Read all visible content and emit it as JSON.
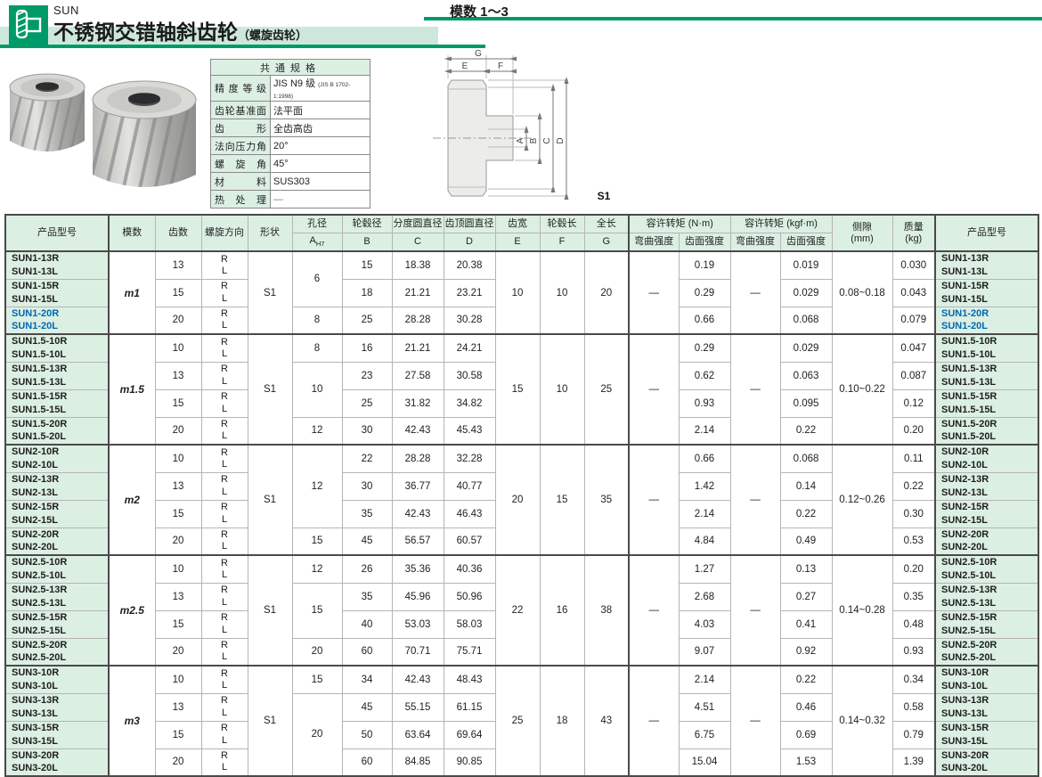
{
  "header": {
    "series": "SUN",
    "title": "不锈钢交错轴斜齿轮",
    "title_suffix": "（螺旋齿轮）",
    "module_range": "模数 1～3"
  },
  "spec": {
    "title": "共通规格",
    "rows": [
      {
        "label": "精度等级",
        "value": "JIS N9 级",
        "note": "(JIS B 1702-1:1998)"
      },
      {
        "label": "齿轮基准面",
        "value": "法平面",
        "note": ""
      },
      {
        "label": "齿形",
        "value": "全齿高齿",
        "note": ""
      },
      {
        "label": "法向压力角",
        "value": "20°",
        "note": ""
      },
      {
        "label": "螺旋角",
        "value": "45°",
        "note": ""
      },
      {
        "label": "材料",
        "value": "SUS303",
        "note": ""
      },
      {
        "label": "热处理",
        "value": "—",
        "note": ""
      }
    ]
  },
  "diagram": {
    "g": "G",
    "e": "E",
    "f": "F",
    "a": "A",
    "b": "B",
    "c": "C",
    "d": "D",
    "shape_label": "S1"
  },
  "table": {
    "headers": {
      "product": "产品型号",
      "module": "模数",
      "teeth": "齿数",
      "helix": "螺旋方向",
      "shape": "形状",
      "bore": "孔径",
      "bore_letter": "A",
      "bore_tol": "H7",
      "hub_dia": "轮毂径",
      "b": "B",
      "pitch_dia": "分度圆直径",
      "c": "C",
      "tip_dia": "齿顶圆直径",
      "d": "D",
      "face_width": "齿宽",
      "e": "E",
      "hub_len": "轮毂长",
      "f": "F",
      "total_len": "全长",
      "g": "G",
      "torque_nm": "容许转矩 (N·m)",
      "torque_kgfm": "容许转矩 (kgf·m)",
      "bend": "弯曲强度",
      "surface": "齿面强度",
      "backlash": "侧隙",
      "backlash_unit": "(mm)",
      "mass": "质量",
      "mass_unit": "(kg)"
    },
    "helix_r": "R",
    "helix_l": "L",
    "blocks": [
      {
        "module": "m1",
        "shape": "S1",
        "E": "10",
        "F": "10",
        "G": "20",
        "bend_nm": "—",
        "bend_kgfm": "—",
        "backlash": "0.08~0.18",
        "bore_spans": [
          [
            "6",
            2
          ],
          [
            "8",
            1
          ]
        ],
        "rows": [
          {
            "r": "SUN1-13R",
            "l": "SUN1-13L",
            "teeth": "13",
            "B": "15",
            "C": "18.38",
            "D": "20.38",
            "surf_nm": "0.19",
            "surf_kgfm": "0.019",
            "mass": "0.030",
            "hl": false
          },
          {
            "r": "SUN1-15R",
            "l": "SUN1-15L",
            "teeth": "15",
            "B": "18",
            "C": "21.21",
            "D": "23.21",
            "surf_nm": "0.29",
            "surf_kgfm": "0.029",
            "mass": "0.043",
            "hl": false
          },
          {
            "r": "SUN1-20R",
            "l": "SUN1-20L",
            "teeth": "20",
            "B": "25",
            "C": "28.28",
            "D": "30.28",
            "surf_nm": "0.66",
            "surf_kgfm": "0.068",
            "mass": "0.079",
            "hl": true
          }
        ]
      },
      {
        "module": "m1.5",
        "shape": "S1",
        "E": "15",
        "F": "10",
        "G": "25",
        "bend_nm": "—",
        "bend_kgfm": "—",
        "backlash": "0.10~0.22",
        "bore_spans": [
          [
            "8",
            1
          ],
          [
            "10",
            2
          ],
          [
            "12",
            1
          ]
        ],
        "rows": [
          {
            "r": "SUN1.5-10R",
            "l": "SUN1.5-10L",
            "teeth": "10",
            "B": "16",
            "C": "21.21",
            "D": "24.21",
            "surf_nm": "0.29",
            "surf_kgfm": "0.029",
            "mass": "0.047",
            "hl": false
          },
          {
            "r": "SUN1.5-13R",
            "l": "SUN1.5-13L",
            "teeth": "13",
            "B": "23",
            "C": "27.58",
            "D": "30.58",
            "surf_nm": "0.62",
            "surf_kgfm": "0.063",
            "mass": "0.087",
            "hl": false
          },
          {
            "r": "SUN1.5-15R",
            "l": "SUN1.5-15L",
            "teeth": "15",
            "B": "25",
            "C": "31.82",
            "D": "34.82",
            "surf_nm": "0.93",
            "surf_kgfm": "0.095",
            "mass": "0.12",
            "hl": false
          },
          {
            "r": "SUN1.5-20R",
            "l": "SUN1.5-20L",
            "teeth": "20",
            "B": "30",
            "C": "42.43",
            "D": "45.43",
            "surf_nm": "2.14",
            "surf_kgfm": "0.22",
            "mass": "0.20",
            "hl": false
          }
        ]
      },
      {
        "module": "m2",
        "shape": "S1",
        "E": "20",
        "F": "15",
        "G": "35",
        "bend_nm": "—",
        "bend_kgfm": "—",
        "backlash": "0.12~0.26",
        "bore_spans": [
          [
            "12",
            3
          ],
          [
            "15",
            1
          ]
        ],
        "rows": [
          {
            "r": "SUN2-10R",
            "l": "SUN2-10L",
            "teeth": "10",
            "B": "22",
            "C": "28.28",
            "D": "32.28",
            "surf_nm": "0.66",
            "surf_kgfm": "0.068",
            "mass": "0.11",
            "hl": false
          },
          {
            "r": "SUN2-13R",
            "l": "SUN2-13L",
            "teeth": "13",
            "B": "30",
            "C": "36.77",
            "D": "40.77",
            "surf_nm": "1.42",
            "surf_kgfm": "0.14",
            "mass": "0.22",
            "hl": false
          },
          {
            "r": "SUN2-15R",
            "l": "SUN2-15L",
            "teeth": "15",
            "B": "35",
            "C": "42.43",
            "D": "46.43",
            "surf_nm": "2.14",
            "surf_kgfm": "0.22",
            "mass": "0.30",
            "hl": false
          },
          {
            "r": "SUN2-20R",
            "l": "SUN2-20L",
            "teeth": "20",
            "B": "45",
            "C": "56.57",
            "D": "60.57",
            "surf_nm": "4.84",
            "surf_kgfm": "0.49",
            "mass": "0.53",
            "hl": false
          }
        ]
      },
      {
        "module": "m2.5",
        "shape": "S1",
        "E": "22",
        "F": "16",
        "G": "38",
        "bend_nm": "—",
        "bend_kgfm": "—",
        "backlash": "0.14~0.28",
        "bore_spans": [
          [
            "12",
            1
          ],
          [
            "15",
            2
          ],
          [
            "20",
            1
          ]
        ],
        "rows": [
          {
            "r": "SUN2.5-10R",
            "l": "SUN2.5-10L",
            "teeth": "10",
            "B": "26",
            "C": "35.36",
            "D": "40.36",
            "surf_nm": "1.27",
            "surf_kgfm": "0.13",
            "mass": "0.20",
            "hl": false
          },
          {
            "r": "SUN2.5-13R",
            "l": "SUN2.5-13L",
            "teeth": "13",
            "B": "35",
            "C": "45.96",
            "D": "50.96",
            "surf_nm": "2.68",
            "surf_kgfm": "0.27",
            "mass": "0.35",
            "hl": false
          },
          {
            "r": "SUN2.5-15R",
            "l": "SUN2.5-15L",
            "teeth": "15",
            "B": "40",
            "C": "53.03",
            "D": "58.03",
            "surf_nm": "4.03",
            "surf_kgfm": "0.41",
            "mass": "0.48",
            "hl": false
          },
          {
            "r": "SUN2.5-20R",
            "l": "SUN2.5-20L",
            "teeth": "20",
            "B": "60",
            "C": "70.71",
            "D": "75.71",
            "surf_nm": "9.07",
            "surf_kgfm": "0.92",
            "mass": "0.93",
            "hl": false
          }
        ]
      },
      {
        "module": "m3",
        "shape": "S1",
        "E": "25",
        "F": "18",
        "G": "43",
        "bend_nm": "—",
        "bend_kgfm": "—",
        "backlash": "0.14~0.32",
        "bore_spans": [
          [
            "15",
            1
          ],
          [
            "20",
            3
          ]
        ],
        "rows": [
          {
            "r": "SUN3-10R",
            "l": "SUN3-10L",
            "teeth": "10",
            "B": "34",
            "C": "42.43",
            "D": "48.43",
            "surf_nm": "2.14",
            "surf_kgfm": "0.22",
            "mass": "0.34",
            "hl": false
          },
          {
            "r": "SUN3-13R",
            "l": "SUN3-13L",
            "teeth": "13",
            "B": "45",
            "C": "55.15",
            "D": "61.15",
            "surf_nm": "4.51",
            "surf_kgfm": "0.46",
            "mass": "0.58",
            "hl": false
          },
          {
            "r": "SUN3-15R",
            "l": "SUN3-15L",
            "teeth": "15",
            "B": "50",
            "C": "63.64",
            "D": "69.64",
            "surf_nm": "6.75",
            "surf_kgfm": "0.69",
            "mass": "0.79",
            "hl": false
          },
          {
            "r": "SUN3-20R",
            "l": "SUN3-20L",
            "teeth": "20",
            "B": "60",
            "C": "84.85",
            "D": "90.85",
            "surf_nm": "15.04",
            "surf_kgfm": "1.53",
            "mass": "1.39",
            "hl": false
          }
        ]
      }
    ]
  },
  "colors": {
    "brand_green": "#009a68",
    "pale_green": "#dcefe3",
    "band_green": "#cde8da",
    "highlight_blue": "#0068b2"
  }
}
